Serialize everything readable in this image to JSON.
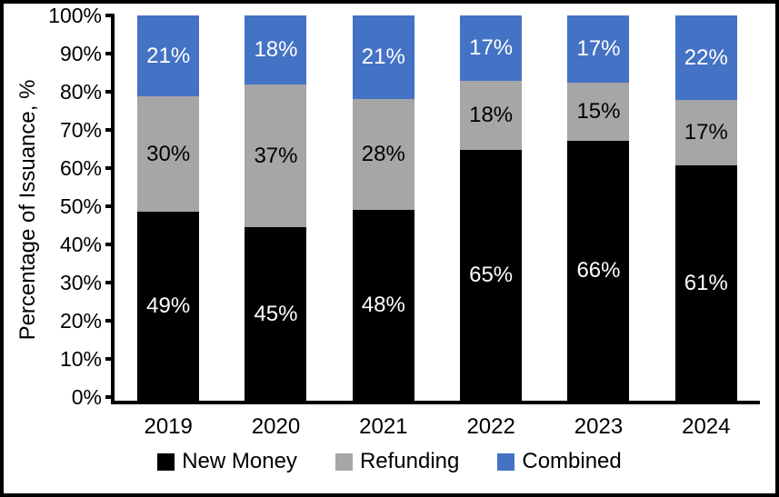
{
  "chart_data": {
    "type": "bar",
    "stacked": true,
    "title": "",
    "xlabel": "",
    "ylabel": "Percentage of Issuance, %",
    "ylim": [
      0,
      100
    ],
    "grid": false,
    "legend_position": "bottom",
    "categories": [
      "2019",
      "2020",
      "2021",
      "2022",
      "2023",
      "2024"
    ],
    "series": [
      {
        "name": "New Money",
        "color": "#000000",
        "label_color": "#ffffff",
        "values": [
          49,
          45,
          48,
          65,
          66,
          61
        ]
      },
      {
        "name": "Refunding",
        "color": "#a6a6a6",
        "label_color": "#000000",
        "values": [
          30,
          37,
          28,
          18,
          15,
          17
        ]
      },
      {
        "name": "Combined",
        "color": "#4472c4",
        "label_color": "#ffffff",
        "values": [
          21,
          18,
          21,
          17,
          17,
          22
        ]
      }
    ],
    "y_ticks": [
      "100%",
      "90%",
      "80%",
      "70%",
      "60%",
      "50%",
      "40%",
      "30%",
      "20%",
      "10%",
      "0%"
    ],
    "value_suffix": "%"
  }
}
